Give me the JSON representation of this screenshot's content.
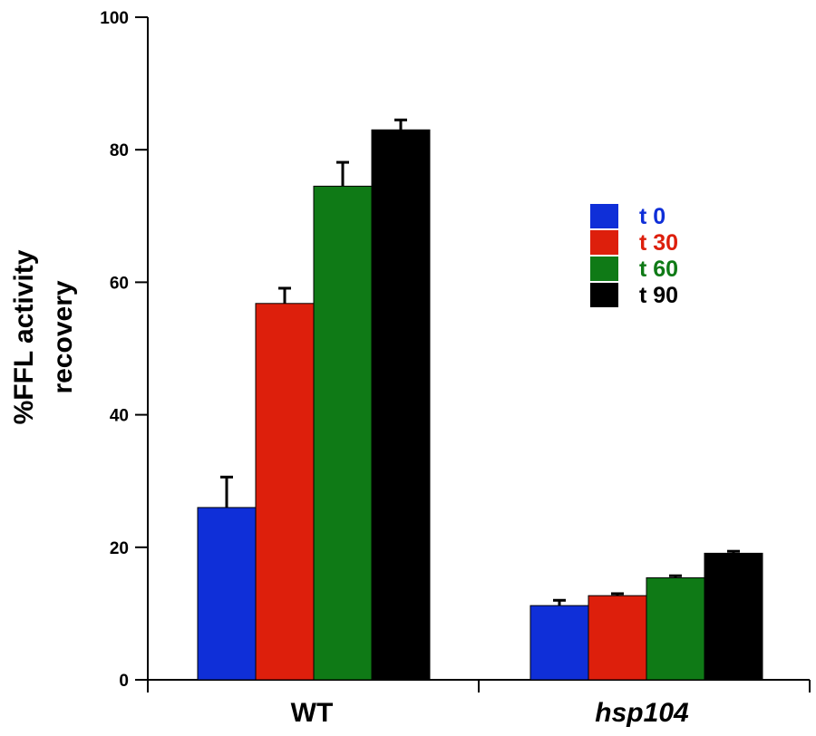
{
  "chart_data": {
    "type": "bar",
    "title": "",
    "xlabel": "",
    "ylabel_lines": [
      "%FFL activity",
      "recovery"
    ],
    "ylim": [
      0,
      100
    ],
    "yticks": [
      0,
      20,
      40,
      60,
      80,
      100
    ],
    "grid": false,
    "legend_position": "right",
    "categories": [
      "WT",
      "hsp104"
    ],
    "category_italic": [
      false,
      true
    ],
    "series": [
      {
        "name": "t 0",
        "color": "#0f2fd8",
        "values": [
          26.0,
          11.2
        ],
        "errors": [
          4.6,
          0.8
        ]
      },
      {
        "name": "t 30",
        "color": "#dd1f0c",
        "values": [
          56.8,
          12.7
        ],
        "errors": [
          2.3,
          0.3
        ]
      },
      {
        "name": "t 60",
        "color": "#0f7a16",
        "values": [
          74.5,
          15.4
        ],
        "errors": [
          3.6,
          0.3
        ]
      },
      {
        "name": "t 90",
        "color": "#000000",
        "values": [
          83.0,
          19.1
        ],
        "errors": [
          1.5,
          0.3
        ]
      }
    ]
  }
}
